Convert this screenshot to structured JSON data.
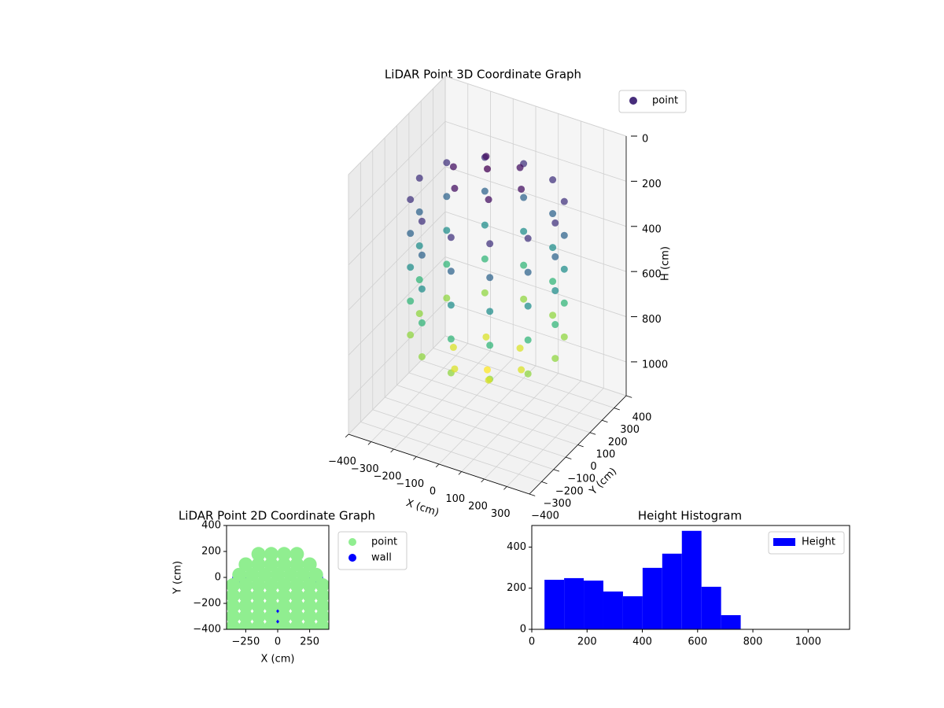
{
  "chart_data": [
    {
      "type": "scatter3d",
      "title": "LiDAR Point 3D Coordinate Graph",
      "xlabel": "X (cm)",
      "ylabel": "Y (cm)",
      "zlabel": "H (cm)",
      "colormap": "viridis",
      "legend": "upper right",
      "xlim": [
        -400,
        400
      ],
      "ylim": [
        -400,
        400
      ],
      "zlim": [
        1150,
        0
      ],
      "xticks": [
        {
          "value": -400,
          "label": "−400"
        },
        {
          "value": -300,
          "label": "−300"
        },
        {
          "value": -200,
          "label": "−200"
        },
        {
          "value": -100,
          "label": "−100"
        },
        0,
        100,
        200,
        300
      ],
      "yticks": [
        {
          "value": -400,
          "label": "−400"
        },
        {
          "value": -300,
          "label": "−300"
        },
        {
          "value": -200,
          "label": "−200"
        },
        {
          "value": -100,
          "label": "−100"
        },
        0,
        100,
        200,
        300,
        400
      ],
      "zticks": [
        0,
        200,
        400,
        600,
        800,
        1000
      ],
      "series": [
        {
          "name": "point",
          "color": "#472d7b",
          "x": [
            300,
            260,
            150,
            0,
            -150,
            -260,
            -300,
            -260,
            -150,
            0,
            150,
            260,
            300,
            260,
            150,
            0,
            -150,
            -260,
            -300,
            -260,
            -150,
            0,
            150,
            260,
            300,
            260,
            150,
            0,
            -150,
            -260,
            -300,
            -260,
            -150,
            0,
            150,
            260,
            300,
            260,
            150,
            0,
            -150,
            -260,
            -300,
            -260,
            -150,
            0,
            150,
            260,
            300,
            260,
            150,
            0,
            -150,
            -260,
            -300,
            -260,
            -150,
            0,
            150,
            260,
            0,
            150,
            75,
            -75,
            -150,
            -75,
            75,
            0,
            150,
            75,
            -75,
            -150,
            -75,
            75
          ],
          "y": [
            0,
            150,
            260,
            300,
            260,
            150,
            0,
            -150,
            -260,
            -300,
            -260,
            -150,
            0,
            150,
            260,
            300,
            260,
            150,
            0,
            -150,
            -260,
            -300,
            -260,
            -150,
            0,
            150,
            260,
            300,
            260,
            150,
            0,
            -150,
            -260,
            -300,
            -260,
            -150,
            0,
            150,
            260,
            300,
            260,
            150,
            0,
            -150,
            -260,
            -300,
            -260,
            -150,
            0,
            150,
            260,
            300,
            260,
            150,
            0,
            -150,
            -260,
            -300,
            -260,
            -150,
            0,
            0,
            130,
            130,
            0,
            -130,
            -130,
            0,
            0,
            130,
            130,
            0,
            -130,
            -130
          ],
          "h": [
            200,
            200,
            200,
            200,
            200,
            200,
            200,
            200,
            200,
            200,
            200,
            200,
            350,
            350,
            350,
            350,
            350,
            350,
            350,
            350,
            350,
            350,
            350,
            350,
            500,
            500,
            500,
            500,
            500,
            500,
            500,
            500,
            500,
            500,
            500,
            500,
            650,
            650,
            650,
            650,
            650,
            650,
            650,
            650,
            650,
            650,
            650,
            650,
            800,
            800,
            800,
            800,
            800,
            800,
            800,
            800,
            800,
            800,
            800,
            800,
            60,
            100,
            100,
            100,
            100,
            100,
            100,
            950,
            900,
            900,
            900,
            900,
            900,
            900
          ]
        }
      ]
    },
    {
      "type": "scatter",
      "title": "LiDAR Point 2D Coordinate Graph",
      "xlabel": "X (cm)",
      "ylabel": "Y (cm)",
      "legend": "outside right",
      "xlim": [
        -400,
        400
      ],
      "ylim": [
        -400,
        400
      ],
      "xticks": [
        {
          "value": -250,
          "label": "−250"
        },
        0,
        250
      ],
      "yticks": [
        {
          "value": -400,
          "label": "−400"
        },
        {
          "value": -200,
          "label": "−200"
        },
        0,
        200,
        400
      ],
      "series": [
        {
          "name": "point",
          "color": "lightgreen",
          "x": [
            -150,
            -50,
            50,
            150,
            -250,
            -150,
            -50,
            50,
            150,
            250,
            -300,
            -200,
            -100,
            0,
            100,
            200,
            300,
            -350,
            -250,
            -150,
            -50,
            50,
            150,
            250,
            350,
            -350,
            -250,
            -150,
            -50,
            50,
            150,
            250,
            350,
            -350,
            -250,
            -150,
            -50,
            50,
            150,
            250,
            350,
            -350,
            -250,
            -150,
            -50,
            50,
            150,
            250,
            350,
            -350,
            -250,
            -150,
            -50,
            50,
            150,
            250,
            350
          ],
          "y": [
            180,
            180,
            180,
            180,
            100,
            100,
            100,
            100,
            100,
            100,
            20,
            20,
            20,
            20,
            20,
            20,
            20,
            -60,
            -60,
            -60,
            -60,
            -60,
            -60,
            -60,
            -60,
            -140,
            -140,
            -140,
            -140,
            -140,
            -140,
            -140,
            -140,
            -220,
            -220,
            -220,
            -220,
            -220,
            -220,
            -220,
            -220,
            -300,
            -300,
            -300,
            -300,
            -300,
            -300,
            -300,
            -300,
            -380,
            -380,
            -380,
            -380,
            -380,
            -380,
            -380,
            -380
          ]
        },
        {
          "name": "wall",
          "color": "blue",
          "x": [
            300,
            -300,
            0
          ],
          "y": [
            0,
            0,
            -300
          ]
        }
      ]
    },
    {
      "type": "histogram",
      "title": "Height Histogram",
      "legend": "upper right",
      "xlim": [
        0,
        1150
      ],
      "ylim": [
        0,
        505
      ],
      "xticks": [
        0,
        200,
        400,
        600,
        800,
        1000
      ],
      "yticks": [
        0,
        200,
        400
      ],
      "bins": [
        46,
        117,
        188,
        259,
        330,
        401,
        472,
        543,
        614,
        685,
        756
      ],
      "series": [
        {
          "name": "Height",
          "color": "blue",
          "values": [
            241,
            249,
            237,
            184,
            161,
            299,
            368,
            479,
            207,
            69
          ]
        }
      ]
    }
  ]
}
